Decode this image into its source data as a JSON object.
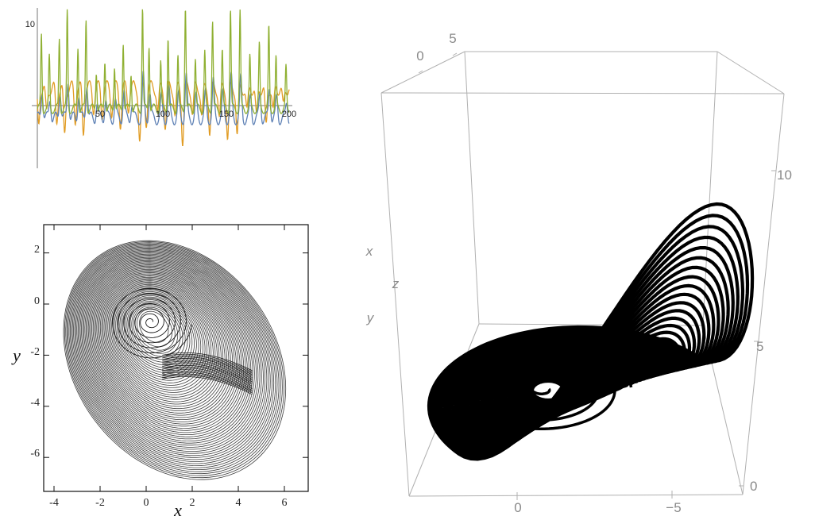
{
  "chart_data": [
    {
      "type": "line",
      "title": "",
      "xlabel": "",
      "ylabel": "",
      "xlim": [
        0,
        200
      ],
      "ylim": [
        -10,
        13
      ],
      "x_ticks": [
        "50",
        "100",
        "150",
        "200"
      ],
      "y_ticks": [
        "10"
      ],
      "series_colors": [
        "#5e81b5",
        "#e19c24",
        "#8fb032"
      ],
      "series": [
        {
          "period": 14,
          "amplitude": 4.8,
          "offset": 0.6
        },
        {
          "period": 14,
          "amplitude": 6.0,
          "offset": -1.2
        },
        {
          "period": 14,
          "amplitude": 12.0,
          "offset": 0.6
        }
      ]
    },
    {
      "type": "line",
      "title": "",
      "xlabel": "x",
      "ylabel": "y",
      "xlim": [
        -4.6,
        6.9
      ],
      "ylim": [
        -7.5,
        2.8
      ],
      "x_ticks": [
        "-4",
        "-2",
        "0",
        "2",
        "4",
        "6"
      ],
      "y_ticks": [
        "2",
        "0",
        "-2",
        "-4",
        "-6"
      ],
      "color": "#1a1a1a",
      "center": [
        0.2,
        -0.7
      ],
      "outer_extent": {
        "x": [
          -4.3,
          6.3
        ],
        "y": [
          -6.6,
          2.4
        ]
      }
    },
    {
      "type": "line",
      "title": "",
      "axis_labels": {
        "x": "x",
        "y": "y",
        "z": "z"
      },
      "xlim": [
        -7,
        3
      ],
      "zlim": [
        0,
        13
      ],
      "x_ticks": [
        "0",
        "−5"
      ],
      "z_ticks": [
        "0",
        "5",
        "10"
      ],
      "y_ticks": [
        "0",
        "5"
      ],
      "grid": false,
      "color": "#000000"
    }
  ]
}
